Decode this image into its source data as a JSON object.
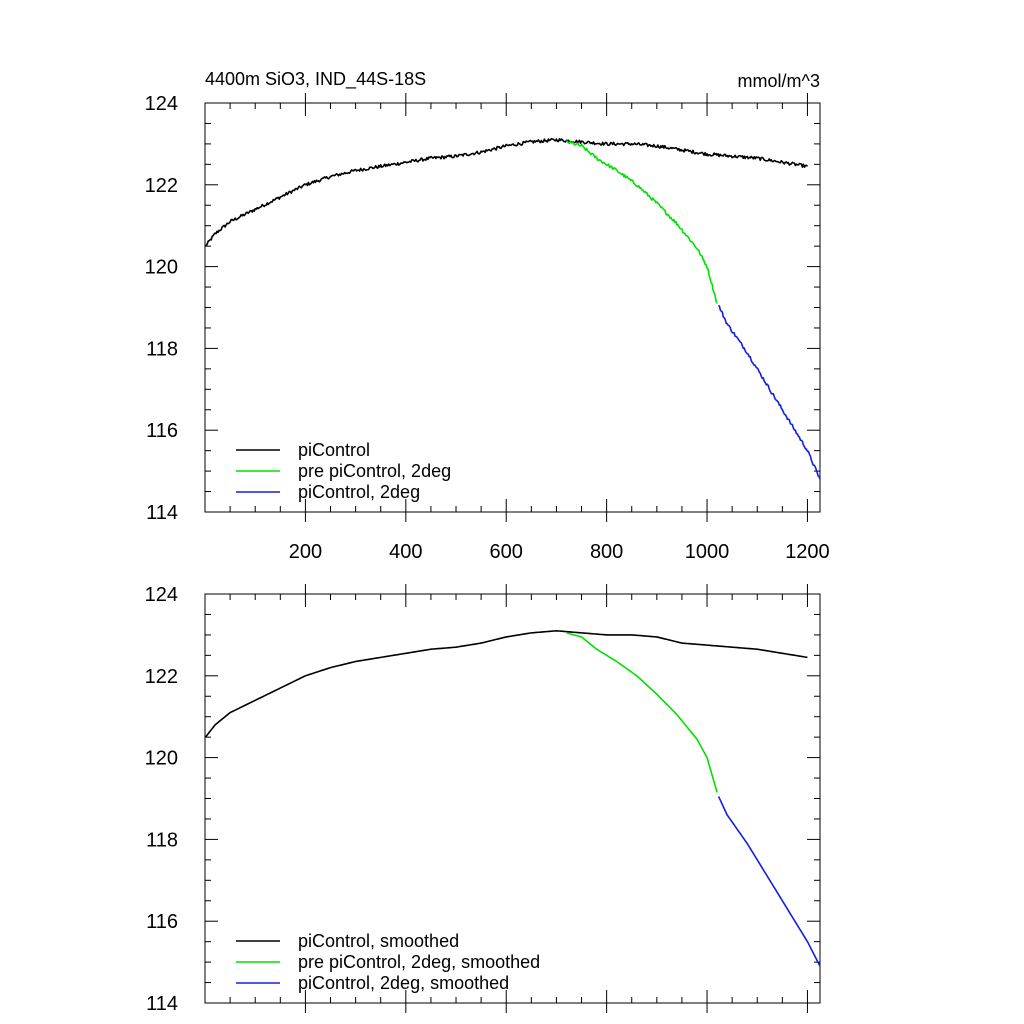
{
  "chart_data": [
    {
      "type": "line",
      "title_left": "4400m SiO3, IND_44S-18S",
      "title_right": "mmol/m^3",
      "xlim": [
        0,
        1225
      ],
      "ylim": [
        114,
        124
      ],
      "yticks": [
        114,
        116,
        118,
        120,
        122,
        124
      ],
      "xticks": [
        200,
        400,
        600,
        800,
        1000,
        1200
      ],
      "show_x_tick_labels": true,
      "legend_position": "bottom-left",
      "series": [
        {
          "name": "piControl",
          "color": "#000000",
          "noisy": true,
          "points": [
            [
              1,
              120.5
            ],
            [
              20,
              120.8
            ],
            [
              50,
              121.1
            ],
            [
              100,
              121.4
            ],
            [
              150,
              121.7
            ],
            [
              200,
              122.0
            ],
            [
              250,
              122.2
            ],
            [
              300,
              122.35
            ],
            [
              350,
              122.45
            ],
            [
              400,
              122.55
            ],
            [
              450,
              122.65
            ],
            [
              500,
              122.7
            ],
            [
              550,
              122.8
            ],
            [
              600,
              122.95
            ],
            [
              650,
              123.05
            ],
            [
              700,
              123.1
            ],
            [
              750,
              123.05
            ],
            [
              800,
              123.0
            ],
            [
              850,
              123.0
            ],
            [
              900,
              122.95
            ],
            [
              950,
              122.85
            ],
            [
              1000,
              122.75
            ],
            [
              1050,
              122.7
            ],
            [
              1100,
              122.65
            ],
            [
              1150,
              122.55
            ],
            [
              1200,
              122.45
            ]
          ]
        },
        {
          "name": "pre piControl, 2deg",
          "color": "#00e000",
          "noisy": true,
          "points": [
            [
              720,
              123.05
            ],
            [
              750,
              122.95
            ],
            [
              780,
              122.65
            ],
            [
              820,
              122.35
            ],
            [
              860,
              122.0
            ],
            [
              900,
              121.55
            ],
            [
              940,
              121.05
            ],
            [
              980,
              120.45
            ],
            [
              1000,
              120.0
            ],
            [
              1020,
              119.1
            ]
          ]
        },
        {
          "name": "piControl, 2deg",
          "color": "#1020e0",
          "noisy": true,
          "points": [
            [
              1023,
              119.05
            ],
            [
              1040,
              118.6
            ],
            [
              1080,
              117.9
            ],
            [
              1120,
              117.1
            ],
            [
              1160,
              116.3
            ],
            [
              1200,
              115.5
            ],
            [
              1225,
              114.8
            ]
          ]
        }
      ]
    },
    {
      "type": "line",
      "xlim": [
        0,
        1225
      ],
      "ylim": [
        114,
        124
      ],
      "yticks": [
        114,
        116,
        118,
        120,
        122,
        124
      ],
      "xticks": [
        200,
        400,
        600,
        800,
        1000,
        1200
      ],
      "show_x_tick_labels": false,
      "legend_position": "bottom-left",
      "series": [
        {
          "name": "piControl, smoothed",
          "color": "#000000",
          "noisy": false,
          "points": [
            [
              1,
              120.5
            ],
            [
              20,
              120.8
            ],
            [
              50,
              121.1
            ],
            [
              100,
              121.4
            ],
            [
              150,
              121.7
            ],
            [
              200,
              122.0
            ],
            [
              250,
              122.2
            ],
            [
              300,
              122.35
            ],
            [
              350,
              122.45
            ],
            [
              400,
              122.55
            ],
            [
              450,
              122.65
            ],
            [
              500,
              122.7
            ],
            [
              550,
              122.8
            ],
            [
              600,
              122.95
            ],
            [
              650,
              123.05
            ],
            [
              700,
              123.1
            ],
            [
              750,
              123.05
            ],
            [
              800,
              123.0
            ],
            [
              850,
              123.0
            ],
            [
              900,
              122.95
            ],
            [
              950,
              122.8
            ],
            [
              1000,
              122.75
            ],
            [
              1050,
              122.7
            ],
            [
              1100,
              122.65
            ],
            [
              1150,
              122.55
            ],
            [
              1200,
              122.45
            ]
          ]
        },
        {
          "name": "pre piControl, 2deg, smoothed",
          "color": "#00e000",
          "noisy": false,
          "points": [
            [
              720,
              123.05
            ],
            [
              750,
              122.95
            ],
            [
              780,
              122.65
            ],
            [
              820,
              122.35
            ],
            [
              860,
              122.0
            ],
            [
              900,
              121.55
            ],
            [
              940,
              121.05
            ],
            [
              980,
              120.45
            ],
            [
              1000,
              120.0
            ],
            [
              1020,
              119.15
            ]
          ]
        },
        {
          "name": "piControl, 2deg, smoothed",
          "color": "#1020e0",
          "noisy": false,
          "points": [
            [
              1023,
              119.05
            ],
            [
              1040,
              118.6
            ],
            [
              1080,
              117.9
            ],
            [
              1120,
              117.1
            ],
            [
              1160,
              116.3
            ],
            [
              1200,
              115.5
            ],
            [
              1225,
              114.9
            ]
          ]
        }
      ]
    }
  ]
}
